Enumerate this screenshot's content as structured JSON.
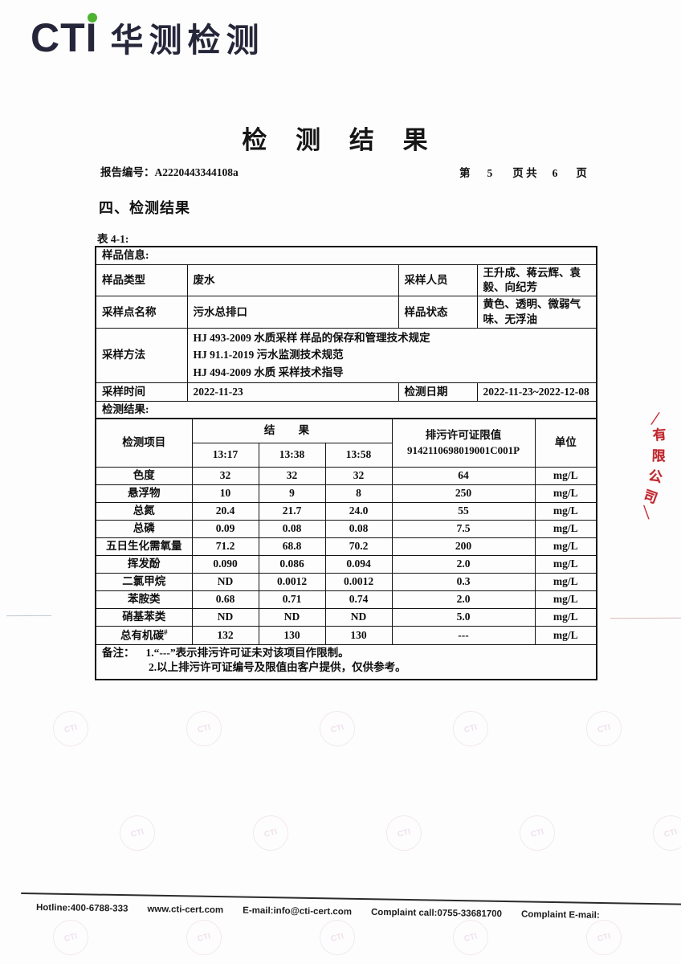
{
  "logo": {
    "cti": "CTI",
    "name": "华测检测"
  },
  "header": {
    "title": "检 测 结 果",
    "report_no_label": "报告编号：",
    "report_no": "A2220443344108a",
    "page_info": {
      "p1": "第",
      "current": "5",
      "p2": "页 共",
      "total": "6",
      "p3": "页"
    }
  },
  "section": {
    "heading": "四、检测结果",
    "table_label": "表 4-1:"
  },
  "sample_info": {
    "header": "样品信息:",
    "rows": [
      {
        "l1": "样品类型",
        "v1": "废水",
        "l2": "采样人员",
        "v2": "王升成、蒋云辉、袁毅、向纪芳"
      },
      {
        "l1": "采样点名称",
        "v1": "污水总排口",
        "l2": "样品状态",
        "v2": "黄色、透明、微弱气味、无浮油"
      }
    ],
    "method_label": "采样方法",
    "method_lines": [
      "HJ 493-2009  水质采样  样品的保存和管理技术规定",
      "HJ 91.1-2019  污水监测技术规范",
      "HJ 494-2009  水质  采样技术指导"
    ],
    "time_row": {
      "l1": "采样时间",
      "v1": "2022-11-23",
      "l2": "检测日期",
      "v2": "2022-11-23~2022-12-08"
    },
    "results_header": "检测结果:"
  },
  "results_table": {
    "item_header": "检测项目",
    "result_header": "结 果",
    "time_headers": [
      "13:17",
      "13:38",
      "13:58"
    ],
    "limit_header_line1": "排污许可证限值",
    "limit_header_line2": "9142110698019001C001P",
    "unit_header": "单位",
    "rows": [
      {
        "item": "色度",
        "item_sup": "",
        "r1": "32",
        "r2": "32",
        "r3": "32",
        "limit": "64",
        "unit": "mg/L"
      },
      {
        "item": "悬浮物",
        "item_sup": "",
        "r1": "10",
        "r2": "9",
        "r3": "8",
        "limit": "250",
        "unit": "mg/L"
      },
      {
        "item": "总氮",
        "item_sup": "",
        "r1": "20.4",
        "r2": "21.7",
        "r3": "24.0",
        "limit": "55",
        "unit": "mg/L"
      },
      {
        "item": "总磷",
        "item_sup": "",
        "r1": "0.09",
        "r2": "0.08",
        "r3": "0.08",
        "limit": "7.5",
        "unit": "mg/L"
      },
      {
        "item": "五日生化需氧量",
        "item_sup": "",
        "r1": "71.2",
        "r2": "68.8",
        "r3": "70.2",
        "limit": "200",
        "unit": "mg/L"
      },
      {
        "item": "挥发酚",
        "item_sup": "",
        "r1": "0.090",
        "r2": "0.086",
        "r3": "0.094",
        "limit": "2.0",
        "unit": "mg/L"
      },
      {
        "item": "二氯甲烷",
        "item_sup": "",
        "r1": "ND",
        "r2": "0.0012",
        "r3": "0.0012",
        "limit": "0.3",
        "unit": "mg/L"
      },
      {
        "item": "苯胺类",
        "item_sup": "",
        "r1": "0.68",
        "r2": "0.71",
        "r3": "0.74",
        "limit": "2.0",
        "unit": "mg/L"
      },
      {
        "item": "硝基苯类",
        "item_sup": "",
        "r1": "ND",
        "r2": "ND",
        "r3": "ND",
        "limit": "5.0",
        "unit": "mg/L"
      },
      {
        "item": "总有机碳",
        "item_sup": "#",
        "r1": "132",
        "r2": "130",
        "r3": "130",
        "limit": "---",
        "unit": "mg/L"
      }
    ],
    "notes": {
      "label": "备注：",
      "line1": "1.“---”表示排污许可证未对该项目作限制。",
      "line2": "2.以上排污许可证编号及限值由客户提供，仅供参考。"
    }
  },
  "stamp": {
    "top_mark": "／",
    "chars": [
      "有",
      "限",
      "公",
      "司"
    ],
    "bottom_mark": "＼",
    "color": "#c1272d"
  },
  "footer": {
    "items": [
      "Hotline:400-6788-333",
      "www.cti-cert.com",
      "E-mail:info@cti-cert.com",
      "Complaint call:0755-33681700",
      "Complaint E-mail:"
    ]
  },
  "colors": {
    "logo_text": "#26263a",
    "logo_dot": "#4fb332",
    "stamp_red": "#c1272d",
    "ink": "#111111"
  }
}
